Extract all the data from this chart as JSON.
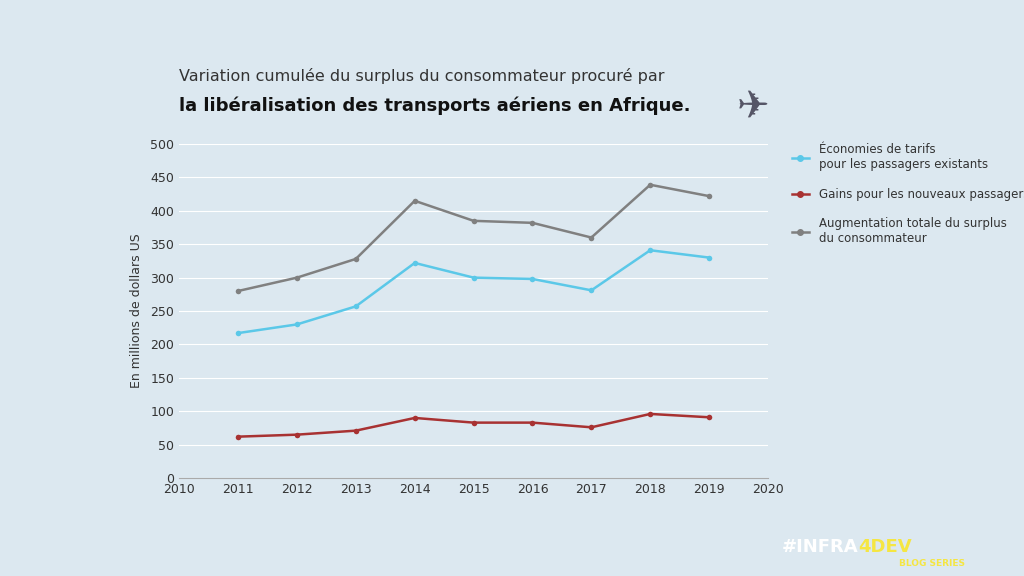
{
  "title_line1": "Variation cumulée du surplus du consommateur procuré par",
  "title_line2": "la libéralisation des transports aériens en Afrique.",
  "ylabel": "En millions de dollars US",
  "background_color": "#dce8f0",
  "plot_bg_color": "#dce8f0",
  "years": [
    2011,
    2012,
    2013,
    2014,
    2015,
    2016,
    2017,
    2018,
    2019
  ],
  "cyan_series": [
    217,
    230,
    257,
    322,
    300,
    298,
    281,
    341,
    330
  ],
  "red_series": [
    62,
    65,
    71,
    90,
    83,
    83,
    76,
    96,
    91
  ],
  "gray_series": [
    280,
    300,
    328,
    415,
    385,
    382,
    360,
    439,
    422
  ],
  "cyan_color": "#5bc8e8",
  "red_color": "#a83232",
  "gray_color": "#808080",
  "legend_cyan": "Économies de tarifs\npour les passagers existants",
  "legend_red": "Gains pour les nouveaux passagers",
  "legend_gray": "Augmentation totale du surplus\ndu consommateur",
  "xlim": [
    2010,
    2020
  ],
  "ylim": [
    0,
    500
  ],
  "yticks": [
    0,
    50,
    100,
    150,
    200,
    250,
    300,
    350,
    400,
    450,
    500
  ],
  "xticks": [
    2010,
    2011,
    2012,
    2013,
    2014,
    2015,
    2016,
    2017,
    2018,
    2019,
    2020
  ],
  "footer_bg": "#2d3a4a",
  "footer_text_infra": "#INFRA",
  "footer_text_4dev": "4DEV",
  "footer_text_blog": "BLOG SERIES",
  "footer_color_white": "#ffffff",
  "footer_color_yellow": "#f5e642"
}
